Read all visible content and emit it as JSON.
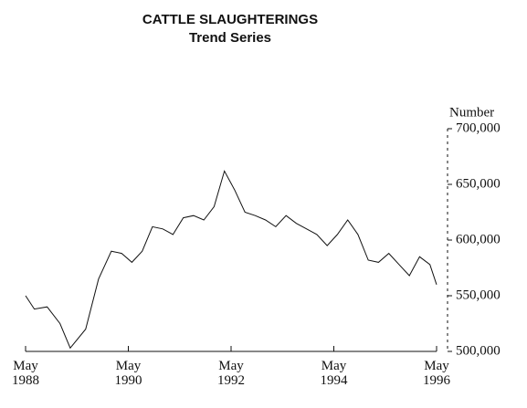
{
  "chart_data": {
    "type": "line",
    "title": "CATTLE SLAUGHTERINGS",
    "subtitle": "Trend Series",
    "y_label": "Number",
    "x": [
      1988.33,
      1988.5,
      1988.75,
      1989.0,
      1989.2,
      1989.5,
      1989.75,
      1990.0,
      1990.2,
      1990.4,
      1990.6,
      1990.8,
      1991.0,
      1991.2,
      1991.4,
      1991.6,
      1991.8,
      1992.0,
      1992.2,
      1992.4,
      1992.6,
      1992.8,
      1993.0,
      1993.2,
      1993.4,
      1993.6,
      1993.8,
      1994.0,
      1994.2,
      1994.4,
      1994.6,
      1994.8,
      1995.0,
      1995.2,
      1995.4,
      1995.6,
      1995.8,
      1996.0,
      1996.2,
      1996.33
    ],
    "series": [
      {
        "name": "Cattle slaughterings",
        "color": "#111111",
        "values": [
          550000,
          538000,
          540000,
          525000,
          503000,
          520000,
          565000,
          590000,
          588000,
          580000,
          590000,
          612000,
          610000,
          605000,
          620000,
          622000,
          618000,
          630000,
          662000,
          645000,
          625000,
          622000,
          618000,
          612000,
          622000,
          615000,
          610000,
          605000,
          595000,
          605000,
          618000,
          605000,
          582000,
          580000,
          588000,
          578000,
          568000,
          585000,
          578000,
          560000
        ]
      }
    ],
    "xlim": [
      1988.33,
      1996.33
    ],
    "xticks": [
      {
        "value": 1988.33,
        "label": "May 1988"
      },
      {
        "value": 1990.33,
        "label": "May 1990"
      },
      {
        "value": 1992.33,
        "label": "May 1992"
      },
      {
        "value": 1994.33,
        "label": "May 1994"
      },
      {
        "value": 1996.33,
        "label": "May 1996"
      }
    ],
    "ylim": [
      500000,
      700000
    ],
    "yticks": [
      {
        "value": 500000,
        "label": "500,000"
      },
      {
        "value": 550000,
        "label": "550,000"
      },
      {
        "value": 600000,
        "label": "600,000"
      },
      {
        "value": 650000,
        "label": "650,000"
      },
      {
        "value": 700000,
        "label": "700,000"
      }
    ]
  }
}
